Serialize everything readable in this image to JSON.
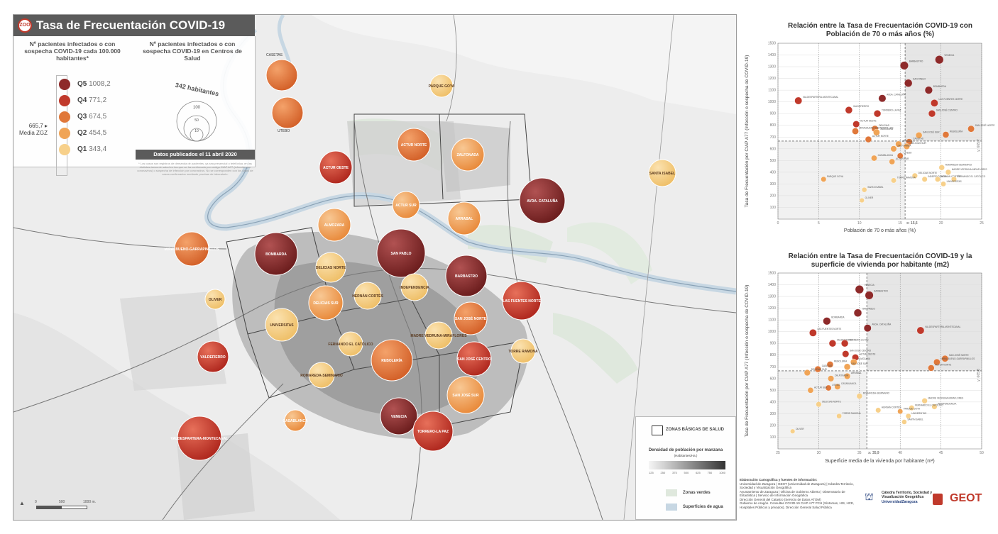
{
  "map": {
    "badge": "ZOO",
    "title": "Tasa de Frecuentación COVID-19",
    "legend_rate_title": "Nº pacientes infectados o con sospecha COVID-19 cada 100.000 habitantes*",
    "legend_size_title": "Nº pacientes infectados o con sospecha COVID-19 en Centros de Salud",
    "size_scale_label": "342 habitantes",
    "size_scale_values": [
      "100",
      "50",
      "10"
    ],
    "quintiles": [
      {
        "label": "Q5",
        "value": "1008,2",
        "color": "#8e2a2a"
      },
      {
        "label": "Q4",
        "value": "771,2",
        "color": "#c0392b"
      },
      {
        "label": "Q3",
        "value": "674,5",
        "color": "#e0783a"
      },
      {
        "label": "Q2",
        "value": "454,5",
        "color": "#f0a456"
      },
      {
        "label": "Q1",
        "value": "343,4",
        "color": "#f7d08a"
      }
    ],
    "mean_label": "665,7",
    "mean_sublabel": "Media ZGZ",
    "date_label": "Datos publicados el 11 abril 2020",
    "note": "* Los casos son registros de demanda de pacientes, ya sea presencial o telefónica, en las distintas áreas de salud en las que se ha confirmado por código CIAP A77 (infección por coronavirus) o sospecha de infección por coronavirus. No se corresponden con los datos de casos confirmados mediante pruebas de laboratorio.",
    "zones": [
      {
        "name": "CASETAS",
        "q": 3
      },
      {
        "name": "UTEBO",
        "q": 3
      },
      {
        "name": "PARQUE GOYA",
        "q": 2
      },
      {
        "name": "ACTUR NORTE",
        "q": 3
      },
      {
        "name": "ZALFONADA",
        "q": 2
      },
      {
        "name": "ACTUR OESTE",
        "q": 4
      },
      {
        "name": "SANTA ISABEL",
        "q": 1
      },
      {
        "name": "AVDA. CATALUÑA",
        "q": 5
      },
      {
        "name": "ACTUR SUR",
        "q": 2
      },
      {
        "name": "ARRABAL",
        "q": 2
      },
      {
        "name": "ALMOZARA",
        "q": 2
      },
      {
        "name": "MIRALBUENO-GARRAPINILLOS",
        "q": 3
      },
      {
        "name": "BOMBARDA",
        "q": 5
      },
      {
        "name": "SAN PABLO",
        "q": 5
      },
      {
        "name": "BARBASTRO",
        "q": 5
      },
      {
        "name": "DELICIAS NORTE",
        "q": 1
      },
      {
        "name": "INDEPENDENCIA",
        "q": 1
      },
      {
        "name": "LAS FUENTES NORTE",
        "q": 4
      },
      {
        "name": "OLIVER",
        "q": 1
      },
      {
        "name": "HERNÁN CORTÉS",
        "q": 1
      },
      {
        "name": "DELICIAS SUR",
        "q": 2
      },
      {
        "name": "SAN JOSÉ NORTE",
        "q": 3
      },
      {
        "name": "UNIVERSITAS",
        "q": 1
      },
      {
        "name": "MADRE VEDRUNA-MIRAFLORES",
        "q": 1
      },
      {
        "name": "FERNANDO EL CATÓLICO",
        "q": 1
      },
      {
        "name": "TORRE RAMONA",
        "q": 1
      },
      {
        "name": "VALDEFIERRO",
        "q": 4
      },
      {
        "name": "ROMAREDA-SEMINARIO",
        "q": 1
      },
      {
        "name": "REBOLERÍA",
        "q": 3
      },
      {
        "name": "SAN JOSÉ CENTRO",
        "q": 4
      },
      {
        "name": "SAN JOSÉ SUR",
        "q": 2
      },
      {
        "name": "CASABLANCA",
        "q": 2
      },
      {
        "name": "VENECIA",
        "q": 5
      },
      {
        "name": "TORRERO-LA PAZ",
        "q": 4
      },
      {
        "name": "VALDESPARTERA-MONTECANAL",
        "q": 4
      }
    ],
    "key": {
      "zones_label": "ZONAS BÁSICAS DE SALUD",
      "density_title": "Densidad de población por manzana",
      "density_unit": "(Habitantes/Ha.)",
      "density_ticks": [
        "125",
        "250",
        "375",
        "500",
        "625",
        "750",
        "1000"
      ],
      "green_label": "Zonas verdes",
      "water_label": "Superficies de agua"
    },
    "scale_labels": [
      "0",
      "500",
      "1000 m."
    ]
  },
  "chart_data": [
    {
      "type": "scatter",
      "title": "Relación entre la Tasa de Frecuentación COVID-19 con Población de 70 o más años (%)",
      "xlabel": "Población de 70 o más años (%)",
      "ylabel": "Tasa de Frecuentación por CIAP A77 (Infección o sospecha de COVID-19)",
      "xlim": [
        0,
        25
      ],
      "ylim": [
        0,
        1500
      ],
      "xticks": [
        "0",
        "5",
        "10",
        "15",
        "20",
        "25"
      ],
      "yticks": [
        "100",
        "200",
        "300",
        "400",
        "500",
        "600",
        "700",
        "800",
        "900",
        "1000",
        "1100",
        "1200",
        "1300",
        "1400",
        "1500"
      ],
      "mean_x_label": "x: 15,6",
      "mean_y_label": "y: 665,7",
      "points": [
        {
          "label": "VENECIA",
          "x": 19.8,
          "y": 1360
        },
        {
          "label": "BARBASTRO",
          "x": 15.5,
          "y": 1310
        },
        {
          "label": "SAN PABLO",
          "x": 16.0,
          "y": 1160
        },
        {
          "label": "BOMBARDA",
          "x": 18.5,
          "y": 1100
        },
        {
          "label": "VALDESPARTERA-MONTECANAL",
          "x": 2.5,
          "y": 1010
        },
        {
          "label": "AVDA. CATALUÑA",
          "x": 12.8,
          "y": 1030
        },
        {
          "label": "LAS FUENTES NORTE",
          "x": 19.2,
          "y": 990
        },
        {
          "label": "VALDEFIERRO",
          "x": 8.7,
          "y": 930
        },
        {
          "label": "TORRERO-LA PAZ",
          "x": 12.2,
          "y": 900
        },
        {
          "label": "SAN JOSÉ CENTRO",
          "x": 18.9,
          "y": 900
        },
        {
          "label": "ACTUR OESTE",
          "x": 9.6,
          "y": 810
        },
        {
          "label": "SAN JOSÉ NORTE",
          "x": 23.7,
          "y": 770
        },
        {
          "label": "DELICIAS",
          "x": 11.9,
          "y": 770
        },
        {
          "label": "MIRALBUENO-GARRAPINILLOS",
          "x": 9.5,
          "y": 750
        },
        {
          "label": "ALMOZARA",
          "x": 12.1,
          "y": 740
        },
        {
          "label": "REBOLERÍA",
          "x": 20.6,
          "y": 720
        },
        {
          "label": "SAN JOSÉ SUR",
          "x": 17.3,
          "y": 715
        },
        {
          "label": "ACTUR NORTE",
          "x": 11.1,
          "y": 680
        },
        {
          "label": "CASETAS",
          "x": 16.1,
          "y": 660
        },
        {
          "label": "ARRABAL",
          "x": 14.8,
          "y": 640
        },
        {
          "label": "DELICIAS SUR",
          "x": 15.8,
          "y": 620
        },
        {
          "label": "ZALFONADA",
          "x": 14.2,
          "y": 600
        },
        {
          "label": "CASABLANCA",
          "x": 11.8,
          "y": 520
        },
        {
          "label": "UTEBO",
          "x": 15.0,
          "y": 540
        },
        {
          "label": "ACTUR SUR",
          "x": 14.0,
          "y": 490
        },
        {
          "label": "ROMAREDA-SEMINARIO",
          "x": 20.1,
          "y": 440
        },
        {
          "label": "MADRE VEDRUNA-MIRAFLORES",
          "x": 20.9,
          "y": 400
        },
        {
          "label": "DELICIAS NORTE",
          "x": 16.8,
          "y": 370
        },
        {
          "label": "INDEPENDENCIA",
          "x": 18.0,
          "y": 340
        },
        {
          "label": "HERNÁN CORTÉS",
          "x": 19.6,
          "y": 340
        },
        {
          "label": "FERNANDO EL CATÓLICO",
          "x": 21.6,
          "y": 340
        },
        {
          "label": "PARQUE GOYA",
          "x": 5.6,
          "y": 340
        },
        {
          "label": "TORRE RAMONA",
          "x": 14.2,
          "y": 330
        },
        {
          "label": "UNIVERSITAS",
          "x": 20.3,
          "y": 300
        },
        {
          "label": "SANTA ISABEL",
          "x": 10.6,
          "y": 250
        },
        {
          "label": "OLIVER",
          "x": 10.3,
          "y": 160
        }
      ]
    },
    {
      "type": "scatter",
      "title": "Relación entre la Tasa de Frecuentación COVID-19 y la superficie de vivienda por habitante (m2)",
      "xlabel": "Superficie media de la vivienda por habitante (m²)",
      "ylabel": "Tasa de Frecuentación por CIAP A77 (Infección o sospecha de COVID-19)",
      "xlim": [
        25,
        50
      ],
      "ylim": [
        0,
        1500
      ],
      "xticks": [
        "25",
        "30",
        "35",
        "40",
        "45",
        "50"
      ],
      "yticks": [
        "100",
        "200",
        "300",
        "400",
        "500",
        "600",
        "700",
        "800",
        "900",
        "1000",
        "1100",
        "1200",
        "1300",
        "1400",
        "1500"
      ],
      "mean_x_label": "x: 35,9",
      "mean_y_label": "y: 665,8",
      "points": [
        {
          "label": "VENECIA",
          "x": 35.0,
          "y": 1360
        },
        {
          "label": "BARBASTRO",
          "x": 36.2,
          "y": 1310
        },
        {
          "label": "SAN PABLO",
          "x": 34.8,
          "y": 1160
        },
        {
          "label": "BOMBARDA",
          "x": 31.0,
          "y": 1090
        },
        {
          "label": "VALDESPARTERA-MONTECANAL",
          "x": 42.5,
          "y": 1010
        },
        {
          "label": "AVDA. CATALUÑA",
          "x": 36.0,
          "y": 1030
        },
        {
          "label": "LAS FUENTES NORTE",
          "x": 29.3,
          "y": 990
        },
        {
          "label": "VALDEFIERRO",
          "x": 31.7,
          "y": 900
        },
        {
          "label": "TORRERO-LA PAZ",
          "x": 33.2,
          "y": 900
        },
        {
          "label": "SAN JOSÉ CENTRO",
          "x": 33.3,
          "y": 810
        },
        {
          "label": "ACTUR OESTE",
          "x": 34.5,
          "y": 780
        },
        {
          "label": "SAN JOSÉ NORTE",
          "x": 45.5,
          "y": 770
        },
        {
          "label": "ALMOZARA",
          "x": 34.3,
          "y": 740
        },
        {
          "label": "MIRALBUENO-GARRAPINILLOS",
          "x": 44.5,
          "y": 740
        },
        {
          "label": "REBOLERÍA",
          "x": 31.4,
          "y": 720
        },
        {
          "label": "SAN JOSÉ SUR",
          "x": 33.5,
          "y": 700
        },
        {
          "label": "ACTUR NORTE",
          "x": 43.8,
          "y": 690
        },
        {
          "label": "CASETAS",
          "x": 29.9,
          "y": 680
        },
        {
          "label": "DELICIAS SUR",
          "x": 28.6,
          "y": 650
        },
        {
          "label": "ARRABAL",
          "x": 33.5,
          "y": 620
        },
        {
          "label": "ZALFONADA",
          "x": 31.5,
          "y": 600
        },
        {
          "label": "CASABLANCA",
          "x": 32.3,
          "y": 530
        },
        {
          "label": "UTEBO",
          "x": 31.2,
          "y": 520
        },
        {
          "label": "ACTUR SUR",
          "x": 29.0,
          "y": 500
        },
        {
          "label": "ROMAREDA-SEMINARIO",
          "x": 35.0,
          "y": 450
        },
        {
          "label": "MADRE VEDRUNA-MIRAFLORES",
          "x": 43.0,
          "y": 410
        },
        {
          "label": "DELICIAS NORTE",
          "x": 30.0,
          "y": 380
        },
        {
          "label": "INDEPENDENCIA",
          "x": 44.2,
          "y": 360
        },
        {
          "label": "HERNÁN CORTÉS",
          "x": 37.3,
          "y": 330
        },
        {
          "label": "FERNANDO EL CATÓLICO",
          "x": 41.4,
          "y": 350
        },
        {
          "label": "PARQUE GOYA",
          "x": 40.0,
          "y": 320
        },
        {
          "label": "TORRE RAMONA",
          "x": 32.5,
          "y": 280
        },
        {
          "label": "UNIVERSITAS",
          "x": 41.0,
          "y": 280
        },
        {
          "label": "SANTA ISABEL",
          "x": 40.5,
          "y": 230
        },
        {
          "label": "OLIVER",
          "x": 26.8,
          "y": 150
        }
      ]
    }
  ],
  "credits": {
    "heading": "Elaboración Cartográfica y fuentes de información:",
    "lines": [
      "Universidad de Zaragoza | GEOT (Universidad de Zaragoza) | Cátedra Territorio,",
      "Sociedad y Visualización Geográfica",
      "Ayuntamiento de Zaragoza | Oficina de Gobierno Abierto | Observatorio de",
      "Estadística | Servicio de Información Geográfica",
      "Dirección General del Catastro (Servicio de Datos ATOM)",
      "Gobierno de Aragón. Consultas COVID-19 CIAP A77 PCH (Síntomas, HIS, HCE,",
      "Hospitales Públicos y privados). Dirección General Salud Pública"
    ],
    "chair_label": "Cátedra Territorio, Sociedad y Visualización Geográfica",
    "university_label": "UniversidadZaragoza",
    "geot_label": "GEOT"
  }
}
